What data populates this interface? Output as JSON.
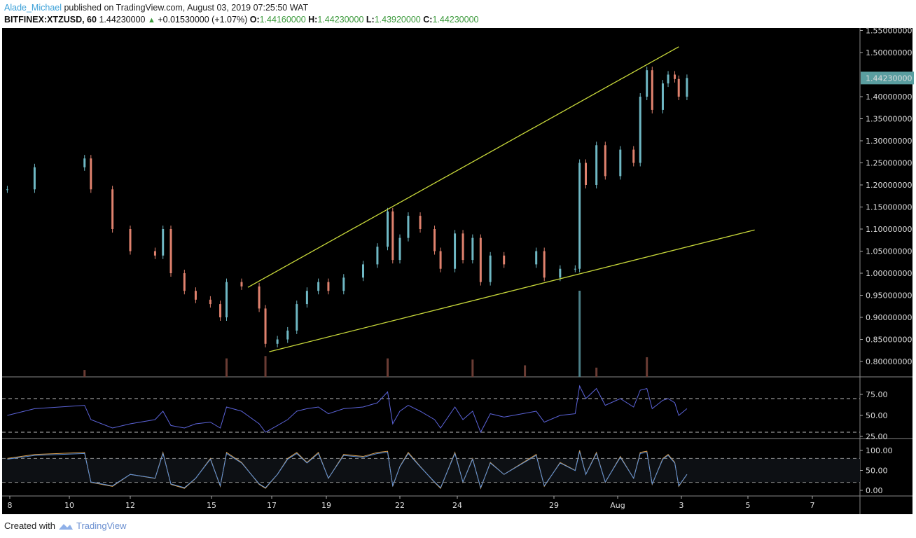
{
  "header": {
    "author": "Alade_Michael",
    "published": "published on TradingView.com, August 03, 2019 07:25:50 WAT",
    "symbol": "BITFINEX:XTZUSD, 60",
    "last": "1.44230000",
    "change": "+0.01530000 (+1.07%)",
    "o_label": "O:",
    "o": "1.44160000",
    "h_label": "H:",
    "h": "1.44230000",
    "l_label": "L:",
    "l": "1.43920000",
    "c_label": "C:",
    "c": "1.44230000"
  },
  "footer": {
    "created_with": "Created with",
    "brand": "TradingView"
  },
  "colors": {
    "background": "#000000",
    "up": "#6fb8c4",
    "down": "#e0826e",
    "trendline": "#c8d83a",
    "rsi": "#5b63d8",
    "stoch_k": "#5b8fd8",
    "stoch_d": "#d8a050",
    "last_price_label": "#5a9ea0"
  },
  "chart_data": [
    {
      "type": "line",
      "title": "",
      "ylim": [
        0.78,
        1.56
      ],
      "price_ticks": [
        "1.55000000",
        "1.50000000",
        "1.40000000",
        "1.35000000",
        "1.30000000",
        "1.25000000",
        "1.20000000",
        "1.15000000",
        "1.10000000",
        "1.05000000",
        "1.00000000",
        "0.95000000",
        "0.90000000",
        "0.85000000",
        "0.80000000"
      ],
      "last_price_label": "1.44230000",
      "x_ticks": [
        {
          "label": "8",
          "date": "2019-07-08 00:00"
        },
        {
          "label": "10",
          "date": "2019-07-10 00:00"
        },
        {
          "label": "12",
          "date": "2019-07-12 00:00"
        },
        {
          "label": "15",
          "date": "2019-07-15 00:00"
        },
        {
          "label": "17",
          "date": "2019-07-17 00:00"
        },
        {
          "label": "19",
          "date": "2019-07-19 00:00"
        },
        {
          "label": "22",
          "date": "2019-07-22 00:00"
        },
        {
          "label": "24",
          "date": "2019-07-24 00:00"
        },
        {
          "label": "29",
          "date": "2019-07-29 00:00"
        },
        {
          "label": "Aug",
          "date": "2019-08-01 00:00"
        },
        {
          "label": "3",
          "date": "2019-08-03 00:00"
        },
        {
          "label": "5",
          "date": "2019-08-05 00:00"
        },
        {
          "label": "7",
          "date": "2019-08-07 00:00"
        }
      ],
      "x": [
        "2019-07-07 22:00",
        "2019-07-08 20:00",
        "2019-07-10 12:00",
        "2019-07-10 17:00",
        "2019-07-11 10:00",
        "2019-07-12 00:00",
        "2019-07-12 22:00",
        "2019-07-13 05:00",
        "2019-07-13 12:00",
        "2019-07-14 00:00",
        "2019-07-14 10:00",
        "2019-07-14 23:00",
        "2019-07-15 07:00",
        "2019-07-15 12:00",
        "2019-07-16 00:00",
        "2019-07-16 14:00",
        "2019-07-16 19:00",
        "2019-07-17 05:00",
        "2019-07-17 14:00",
        "2019-07-17 22:00",
        "2019-07-18 07:00",
        "2019-07-18 17:00",
        "2019-07-19 02:00",
        "2019-07-19 17:00",
        "2019-07-20 12:00",
        "2019-07-21 02:00",
        "2019-07-21 12:00",
        "2019-07-21 17:00",
        "2019-07-22 00:00",
        "2019-07-22 07:00",
        "2019-07-22 17:00",
        "2019-07-23 05:00",
        "2019-07-23 10:00",
        "2019-07-23 22:00",
        "2019-07-24 07:00",
        "2019-07-24 19:00",
        "2019-07-25 05:00",
        "2019-07-25 17:00",
        "2019-07-26 10:00",
        "2019-07-28 02:00",
        "2019-07-28 12:00",
        "2019-07-29 07:00",
        "2019-07-30 00:00",
        "2019-07-30 05:00",
        "2019-07-30 12:00",
        "2019-07-31 00:00",
        "2019-07-31 10:00",
        "2019-08-01 02:00",
        "2019-08-01 12:00",
        "2019-08-01 17:00",
        "2019-08-01 22:00",
        "2019-08-02 02:00",
        "2019-08-02 10:00",
        "2019-08-02 14:00",
        "2019-08-02 19:00",
        "2019-08-02 22:00",
        "2019-08-03 04:00"
      ],
      "series": [
        {
          "values": [
            1.19,
            1.24,
            1.26,
            1.19,
            1.1,
            1.05,
            1.04,
            1.1,
            1.0,
            0.96,
            0.94,
            0.93,
            0.9,
            0.98,
            0.97,
            0.92,
            0.84,
            0.85,
            0.87,
            0.93,
            0.96,
            0.98,
            0.96,
            0.99,
            1.02,
            1.06,
            1.14,
            1.03,
            1.08,
            1.13,
            1.1,
            1.05,
            1.01,
            1.09,
            1.03,
            1.08,
            0.98,
            1.04,
            1.02,
            1.05,
            0.99,
            1.01,
            1.01,
            1.25,
            1.2,
            1.29,
            1.22,
            1.28,
            1.25,
            1.4,
            1.46,
            1.37,
            1.43,
            1.45,
            1.44,
            1.4,
            1.4423
          ]
        }
      ],
      "trendlines": [
        {
          "from": {
            "date": "2019-07-16 05:00",
            "price": 0.968
          },
          "to": {
            "date": "2019-08-02 22:00",
            "price": 1.513
          }
        },
        {
          "from": {
            "date": "2019-07-16 22:00",
            "price": 0.822
          },
          "to": {
            "date": "2019-08-05 05:00",
            "price": 1.098
          }
        }
      ],
      "volume_relative": [
        {
          "date": "2019-07-16 19:00",
          "value": 0.9
        },
        {
          "date": "2019-07-15 12:00",
          "value": 0.8
        },
        {
          "date": "2019-07-21 12:00",
          "value": 0.8
        },
        {
          "date": "2019-07-24 19:00",
          "value": 0.75
        },
        {
          "date": "2019-07-30 05:00",
          "value": 1.0
        },
        {
          "date": "2019-08-01 22:00",
          "value": 0.85
        },
        {
          "date": "2019-07-10 12:00",
          "value": 0.3
        },
        {
          "date": "2019-07-27 12:00",
          "value": 0.5
        },
        {
          "date": "2019-07-31 00:00",
          "value": 0.4
        }
      ]
    },
    {
      "type": "line",
      "ylim": [
        20,
        88
      ],
      "y_ticks": [
        "75.00",
        "50.00",
        "25.00"
      ],
      "bands": [
        30,
        70
      ],
      "values": [
        50,
        58,
        62,
        45,
        35,
        40,
        45,
        55,
        38,
        35,
        40,
        42,
        35,
        60,
        55,
        40,
        30,
        38,
        45,
        55,
        58,
        60,
        52,
        58,
        60,
        65,
        78,
        40,
        55,
        62,
        55,
        45,
        35,
        60,
        45,
        55,
        30,
        52,
        48,
        55,
        42,
        50,
        52,
        85,
        70,
        82,
        62,
        70,
        60,
        80,
        82,
        58,
        68,
        70,
        65,
        50,
        58
      ]
    },
    {
      "type": "line",
      "ylim": [
        -5,
        105
      ],
      "y_ticks": [
        "100.00",
        "50.00",
        "0.00"
      ],
      "bands": [
        20,
        80
      ],
      "values": [
        80,
        90,
        95,
        20,
        10,
        40,
        30,
        95,
        15,
        5,
        30,
        80,
        10,
        95,
        70,
        15,
        5,
        40,
        80,
        95,
        70,
        95,
        30,
        90,
        85,
        95,
        98,
        10,
        60,
        95,
        60,
        20,
        5,
        95,
        20,
        80,
        5,
        70,
        40,
        90,
        10,
        70,
        50,
        100,
        40,
        95,
        20,
        85,
        30,
        95,
        98,
        15,
        80,
        90,
        70,
        10,
        40
      ]
    }
  ]
}
